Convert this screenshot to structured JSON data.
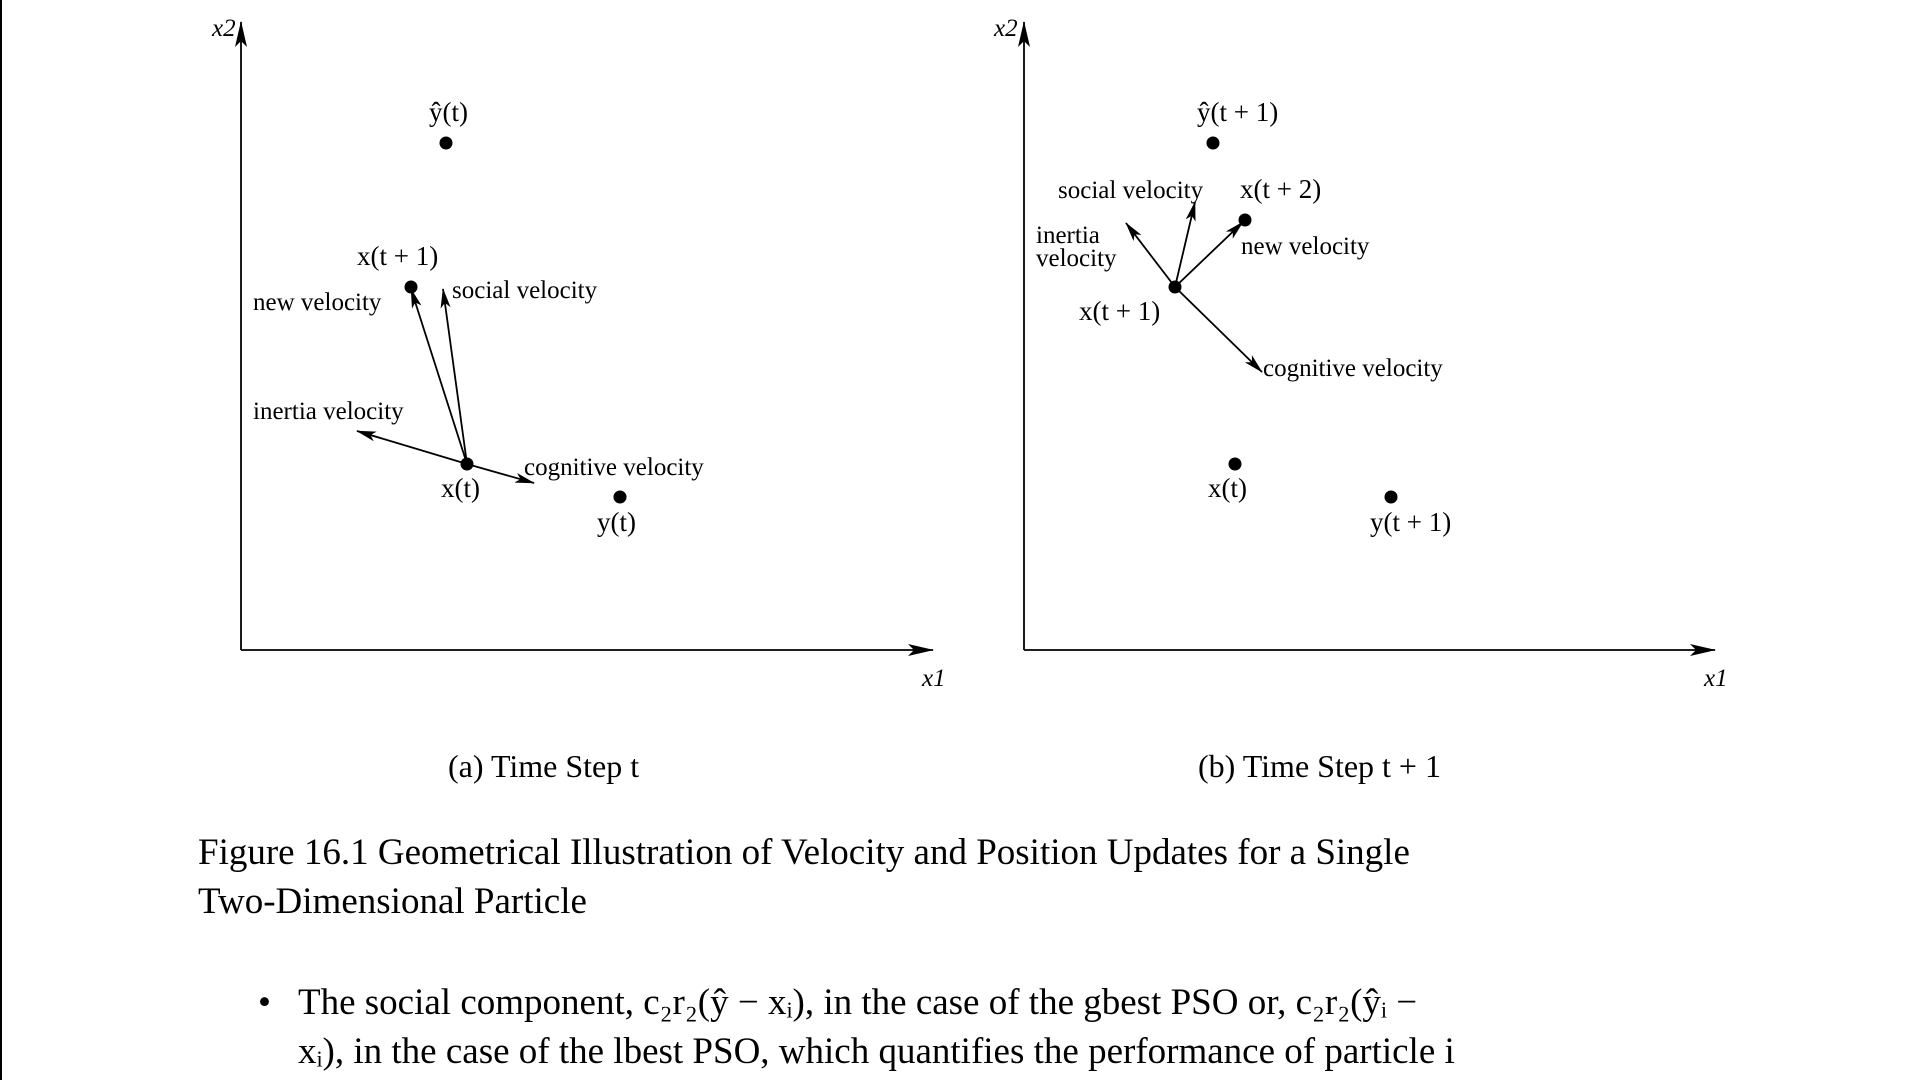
{
  "figure": {
    "panel_a": {
      "subcaption": "(a) Time Step t",
      "axis_x": "x1",
      "axis_y": "x2",
      "points": {
        "y_hat": "ŷ(t)",
        "x_next": "x(t + 1)",
        "x_now": "x(t)",
        "y_now": "y(t)"
      },
      "vectors": {
        "new": "new velocity",
        "social": "social velocity",
        "inertia": "inertia velocity",
        "cognitive": "cognitive velocity"
      }
    },
    "panel_b": {
      "subcaption": "(b) Time Step t + 1",
      "axis_x": "x1",
      "axis_y": "x2",
      "points": {
        "y_hat": "ŷ(t + 1)",
        "x_next2": "x(t + 2)",
        "x_next": "x(t + 1)",
        "x_now": "x(t)",
        "y_next": "y(t + 1)"
      },
      "vectors": {
        "social": "social velocity",
        "inertia_line1": "inertia",
        "inertia_line2": "velocity",
        "new": "new velocity",
        "cognitive": "cognitive velocity"
      }
    },
    "caption_line1": "Figure 16.1 Geometrical Illustration of Velocity and Position Updates for a Single",
    "caption_line2": "Two-Dimensional Particle"
  },
  "body": {
    "bullet_symbol": "•",
    "line1": "The social component, c₂r₂(ŷ − xᵢ), in the case of the gbest PSO or, c₂r₂(ŷᵢ −",
    "line2": "xᵢ), in the case of the lbest PSO, which quantifies the performance of particle i"
  }
}
